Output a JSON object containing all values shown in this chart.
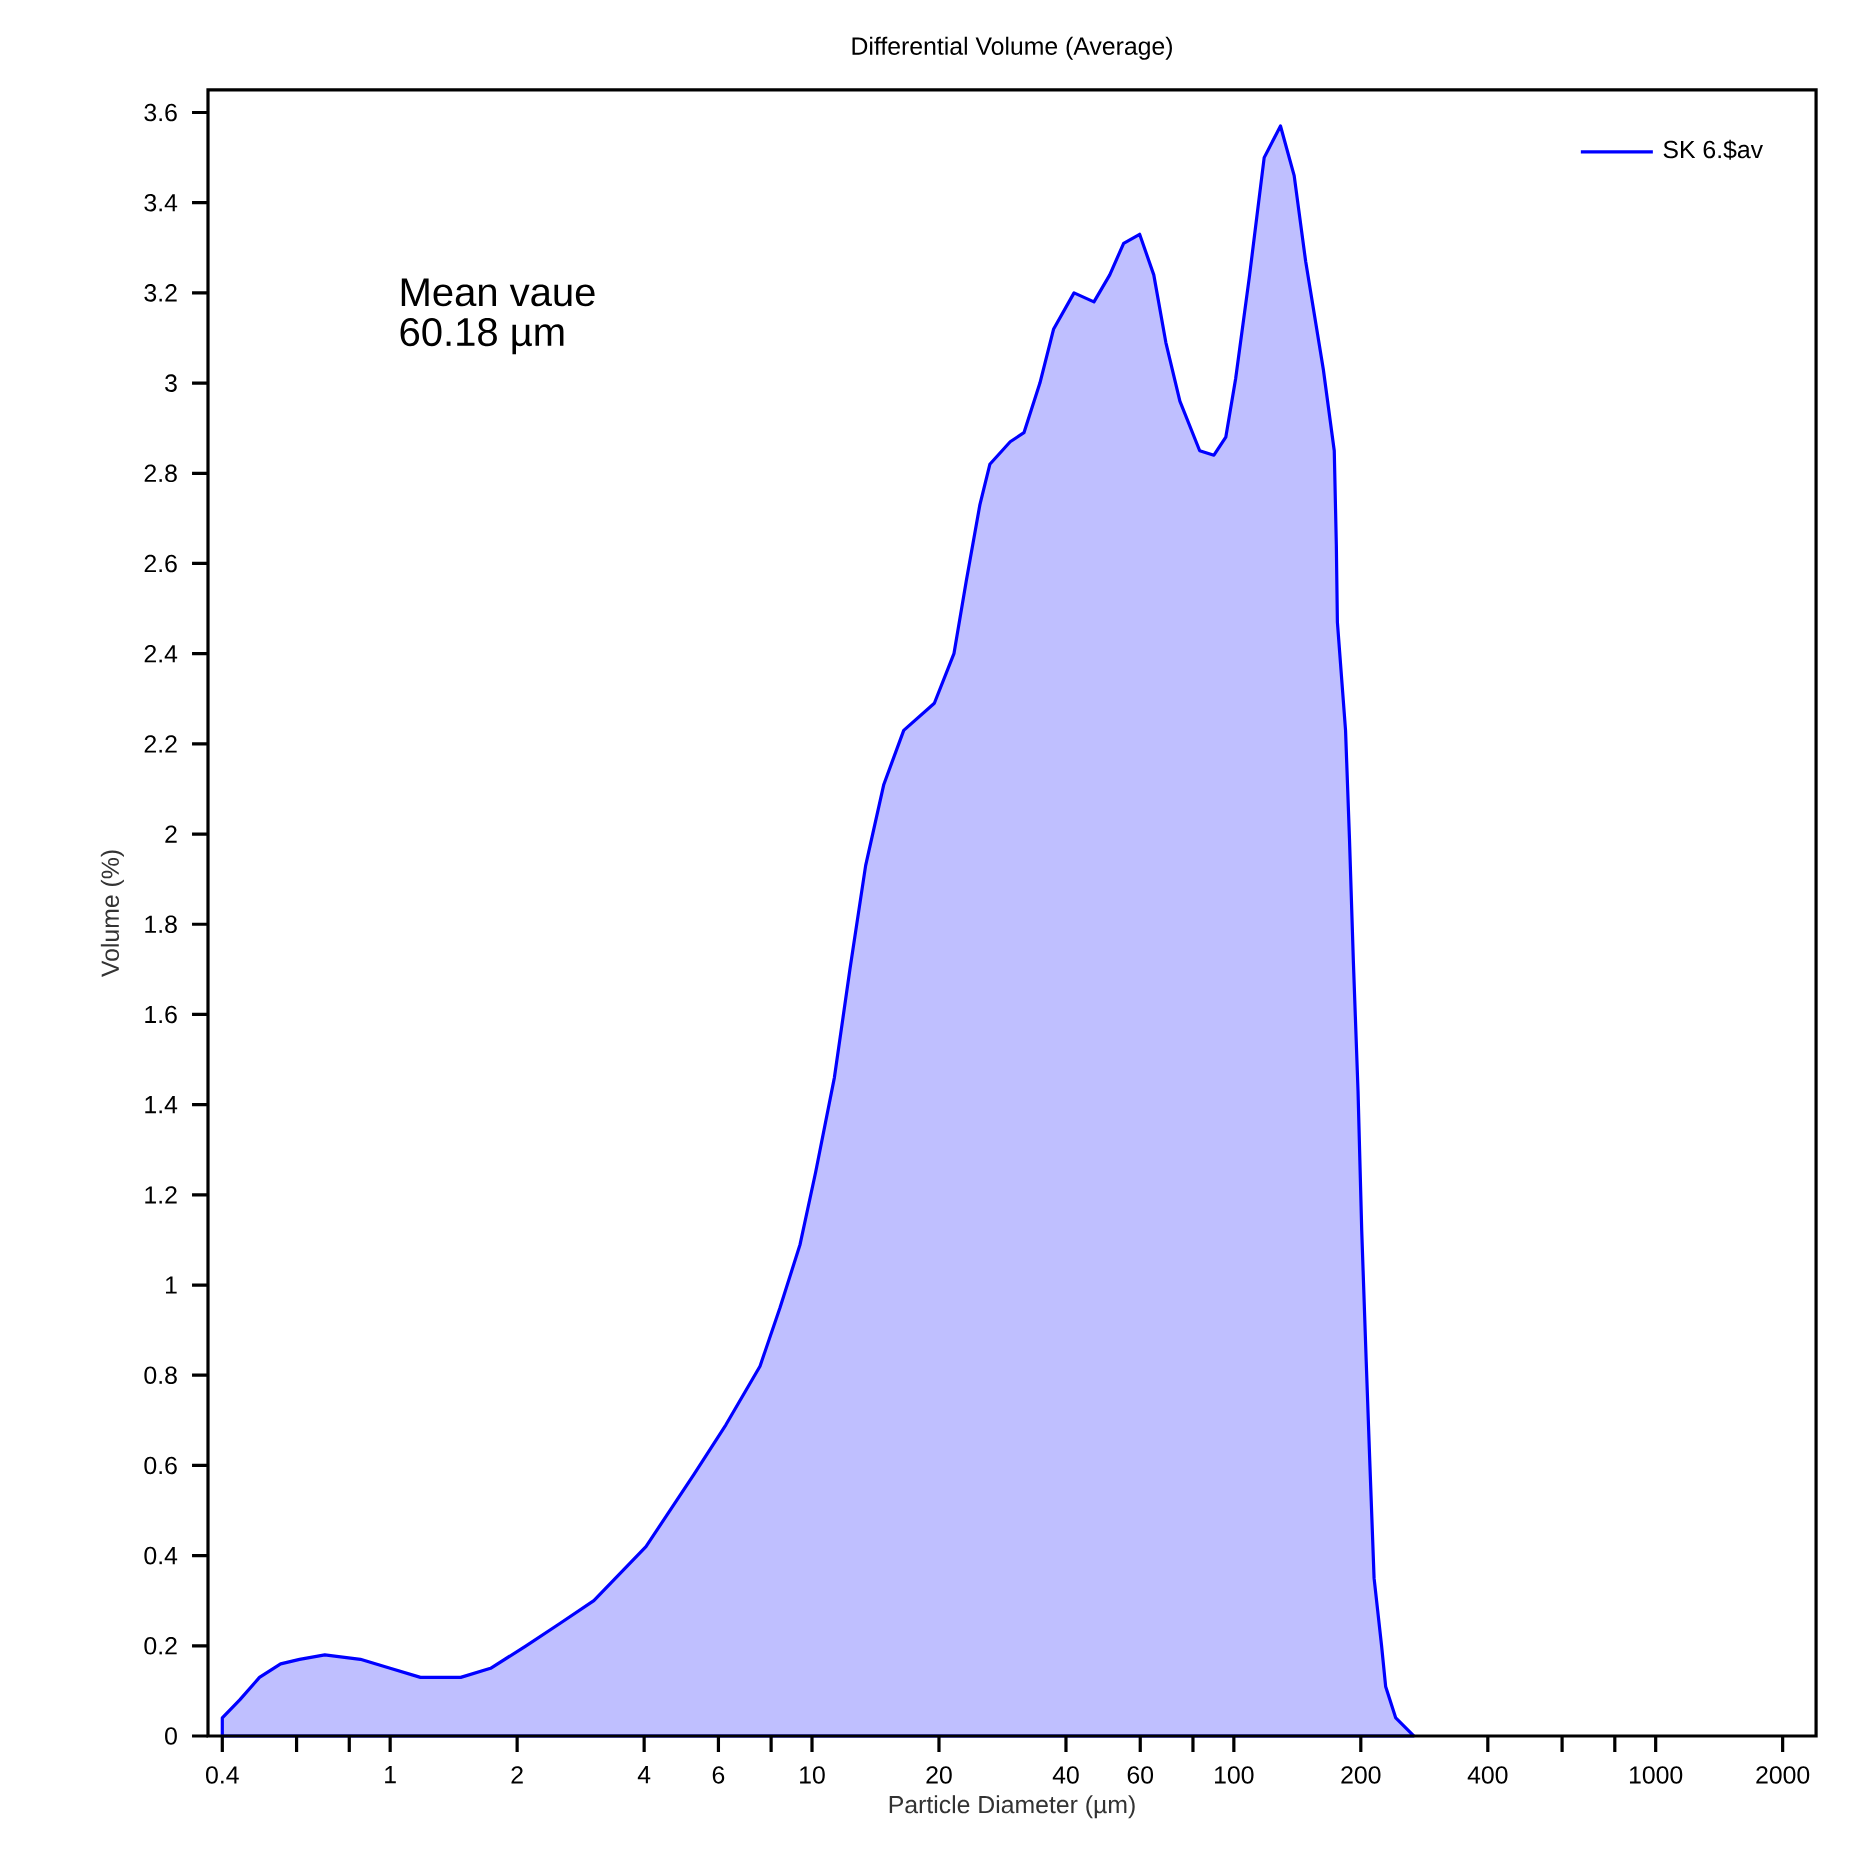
{
  "chart_data": {
    "type": "area",
    "title": "Differential Volume (Average)",
    "xlabel": "Particle Diameter (µm)",
    "ylabel": "Volume (%)",
    "annotations": [
      "Mean vaue",
      "60.18 µm"
    ],
    "log": "x",
    "legend": "top right",
    "grid": false,
    "marker": "none",
    "line_style": "solid",
    "xlim": [
      0.37,
      2400
    ],
    "ylim": [
      0,
      3.65
    ],
    "xticks": [
      0.4,
      {
        "value": 0.6,
        "label": null
      },
      {
        "value": 0.8,
        "label": null
      },
      1,
      2,
      4,
      6,
      {
        "value": 8,
        "label": null
      },
      10,
      20,
      40,
      60,
      {
        "value": 80,
        "label": null
      },
      100,
      200,
      400,
      {
        "value": 600,
        "label": null
      },
      {
        "value": 800,
        "label": null
      },
      1000,
      2000
    ],
    "yticks": [
      0,
      0.2,
      0.4,
      0.6,
      0.8,
      1,
      1.2,
      1.4,
      1.6,
      1.8,
      2,
      2.2,
      2.4,
      2.6,
      2.8,
      3,
      3.2,
      3.4,
      3.6
    ],
    "series": [
      {
        "name": "SK 6.$av",
        "color": "#0000ff",
        "x": [
          0.4,
          0.44,
          0.49,
          0.55,
          0.61,
          0.7,
          0.85,
          1.0,
          1.18,
          1.47,
          1.73,
          2.1,
          2.53,
          3.04,
          4.04,
          5.25,
          6.25,
          7.53,
          8.4,
          9.37,
          10.2,
          11.3,
          12.3,
          13.4,
          14.8,
          16.5,
          19.5,
          21.7,
          23.2,
          25.0,
          26.4,
          29.5,
          31.8,
          34.7,
          37.4,
          41.8,
          46.6,
          50.8,
          54.8,
          59.8,
          64.6,
          69.0,
          74.5,
          83.0,
          89.7,
          95.7,
          101,
          109,
          118,
          129,
          139,
          148,
          163,
          173,
          175,
          176,
          184,
          188,
          192,
          197,
          201,
          206,
          210,
          215,
          224,
          229,
          242,
          267
        ],
        "values": [
          0.04,
          0.08,
          0.13,
          0.16,
          0.17,
          0.18,
          0.17,
          0.15,
          0.13,
          0.13,
          0.15,
          0.2,
          0.25,
          0.3,
          0.42,
          0.58,
          0.69,
          0.82,
          0.95,
          1.09,
          1.25,
          1.46,
          1.7,
          1.93,
          2.11,
          2.23,
          2.29,
          2.4,
          2.56,
          2.73,
          2.82,
          2.87,
          2.89,
          3.0,
          3.12,
          3.2,
          3.18,
          3.24,
          3.31,
          3.33,
          3.24,
          3.09,
          2.96,
          2.85,
          2.84,
          2.88,
          3.01,
          3.24,
          3.5,
          3.57,
          3.46,
          3.27,
          3.03,
          2.85,
          2.64,
          2.47,
          2.23,
          1.99,
          1.72,
          1.43,
          1.12,
          0.83,
          0.61,
          0.35,
          0.2,
          0.11,
          0.04,
          0.0
        ]
      }
    ]
  }
}
